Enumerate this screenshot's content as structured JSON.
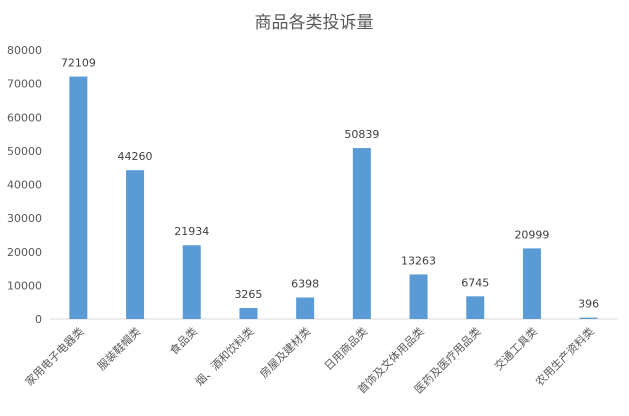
{
  "chart_data": {
    "type": "bar",
    "title": "商品各类投诉量",
    "categories": [
      "家用电子电器类",
      "服装鞋帽类",
      "食品类",
      "烟、酒和饮料类",
      "房屋及建材类",
      "日用商品类",
      "首饰及文体用品类",
      "医药及医疗用品类",
      "交通工具类",
      "农用生产资料类"
    ],
    "values": [
      72109,
      44260,
      21934,
      3265,
      6398,
      50839,
      13263,
      6745,
      20999,
      396
    ],
    "data_labels": [
      "72109",
      "44260",
      "21934",
      "3265",
      "6398",
      "50839",
      "13263",
      "6745",
      "20999",
      "396"
    ],
    "yticks": [
      "0",
      "10000",
      "20000",
      "30000",
      "40000",
      "50000",
      "60000",
      "70000",
      "80000"
    ],
    "ylim": [
      0,
      80000
    ],
    "grid": false,
    "legend": "none",
    "bar_color": "#5B9BD5"
  }
}
